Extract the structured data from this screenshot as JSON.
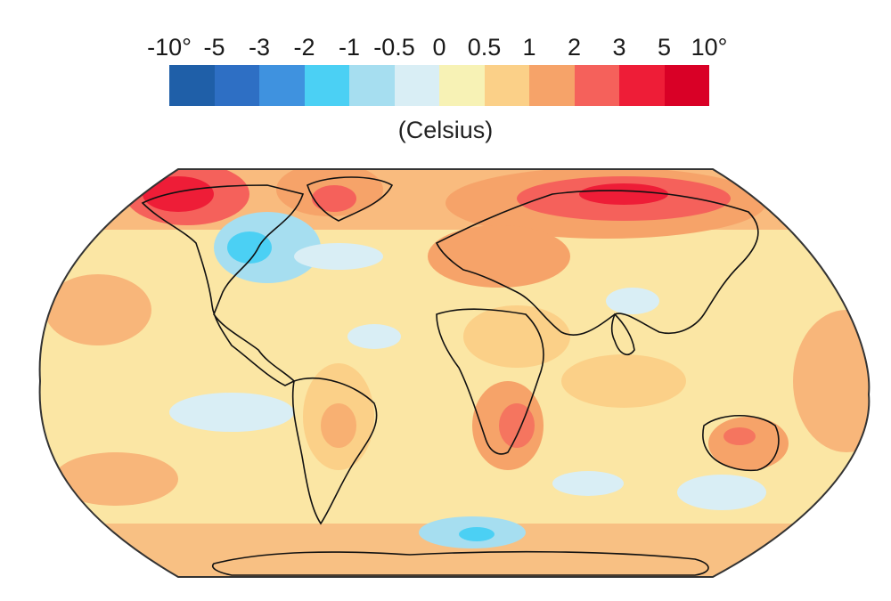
{
  "legend": {
    "ticks": [
      "-10°",
      "-5",
      "-3",
      "-2",
      "-1",
      "-0.5",
      "0",
      "0.5",
      "1",
      "2",
      "3",
      "5",
      "10°"
    ],
    "colors": [
      "#1f5fa8",
      "#2e6fc4",
      "#3f92df",
      "#4bd0f4",
      "#a6def0",
      "#d9eef5",
      "#f7f2b5",
      "#fbd088",
      "#f6a369",
      "#f5615b",
      "#ee1d37",
      "#d90026"
    ],
    "units": "(Celsius)"
  },
  "map": {
    "ocean_base_color": "#fbe6a4",
    "coastline_color": "#111111"
  }
}
